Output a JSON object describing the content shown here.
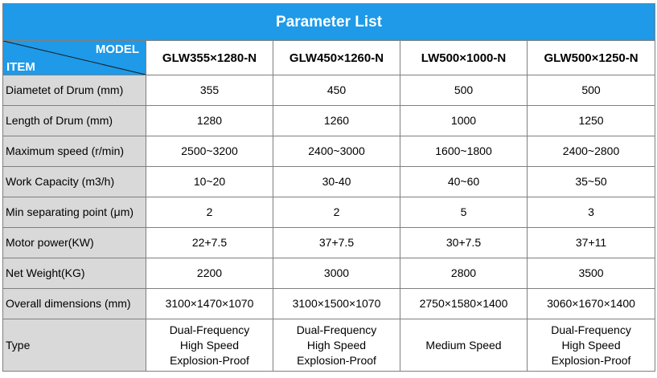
{
  "title": "Parameter List",
  "corner": {
    "model_label": "MODEL",
    "item_label": "ITEM"
  },
  "colors": {
    "header_blue": "#1e9ae8",
    "label_gray": "#d9d9d9",
    "border": "#7f7f7f"
  },
  "models": [
    "GLW355×1280-N",
    "GLW450×1260-N",
    "LW500×1000-N",
    "GLW500×1250-N"
  ],
  "rows": [
    {
      "label": "Diametet of Drum (mm)",
      "values": [
        "355",
        "450",
        "500",
        "500"
      ]
    },
    {
      "label": "Length of Drum (mm)",
      "values": [
        "1280",
        "1260",
        "1000",
        "1250"
      ]
    },
    {
      "label": "Maximum speed (r/min)",
      "values": [
        "2500~3200",
        "2400~3000",
        "1600~1800",
        "2400~2800"
      ]
    },
    {
      "label": "Work Capacity (m3/h)",
      "values": [
        "10~20",
        "30-40",
        "40~60",
        "35~50"
      ]
    },
    {
      "label": "Min separating point (μm)",
      "values": [
        "2",
        "2",
        "5",
        "3"
      ]
    },
    {
      "label": "Motor power(KW)",
      "values": [
        "22+7.5",
        "37+7.5",
        "30+7.5",
        "37+11"
      ]
    },
    {
      "label": "Net Weight(KG)",
      "values": [
        "2200",
        "3000",
        "2800",
        "3500"
      ]
    },
    {
      "label": "Overall dimensions (mm)",
      "values": [
        "3100×1470×1070",
        "3100×1500×1070",
        "2750×1580×1400",
        "3060×1670×1400"
      ]
    }
  ],
  "type_row": {
    "label": "Type",
    "values": [
      [
        "Dual-Frequency",
        "High Speed",
        "Explosion-Proof"
      ],
      [
        "Dual-Frequency",
        "High Speed",
        "Explosion-Proof"
      ],
      [
        "Medium Speed"
      ],
      [
        "Dual-Frequency",
        "High Speed",
        "Explosion-Proof"
      ]
    ]
  }
}
